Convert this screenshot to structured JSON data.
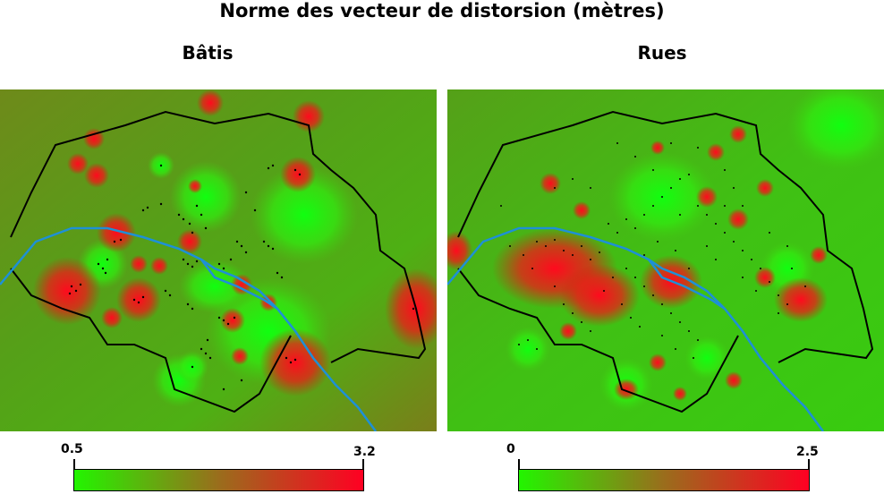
{
  "figure": {
    "title": "Norme des vecteur de distorsion (mètres)"
  },
  "panels": [
    {
      "subtitle": "Bâtis",
      "colorbar": {
        "min_label": "0.5",
        "max_label": "3.2",
        "low_color": "#22f500",
        "mid_color": "#9a6d1c",
        "high_color": "#ff0022"
      }
    },
    {
      "subtitle": "Rues",
      "colorbar": {
        "min_label": "0",
        "max_label": "2.5",
        "low_color": "#22f500",
        "mid_color": "#9a6d1c",
        "high_color": "#ff0022"
      }
    }
  ],
  "map_style": {
    "boundary_color": "#000000",
    "river_color": "#1e90d6",
    "point_color": "#000000"
  }
}
